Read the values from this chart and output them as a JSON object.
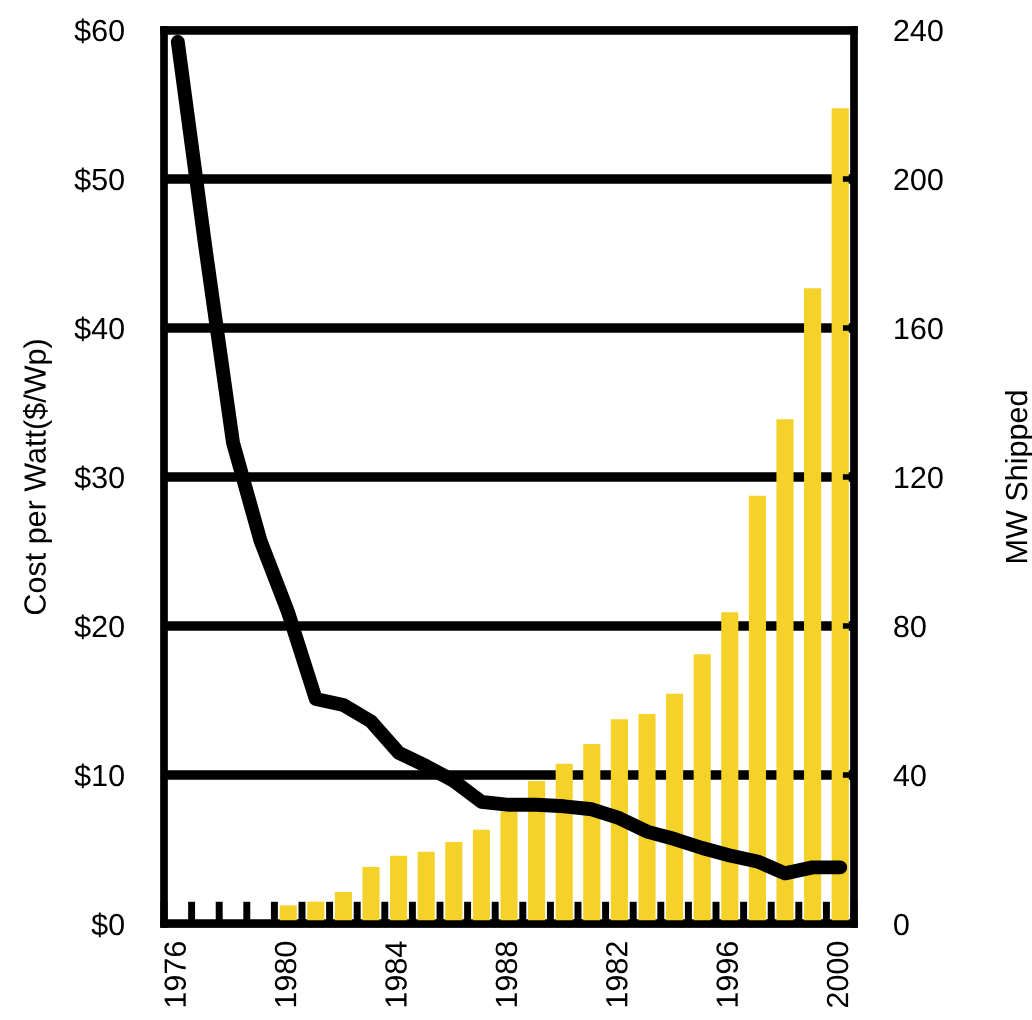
{
  "chart_data": {
    "type": "bar",
    "ylabel": "Cost per Watt($/Wp)",
    "y2label": "MW Shipped",
    "categories": [
      "1976",
      null,
      null,
      null,
      "1980",
      null,
      null,
      null,
      "1984",
      null,
      null,
      null,
      "1988",
      null,
      null,
      null,
      "1982",
      null,
      null,
      null,
      "1996",
      null,
      null,
      null,
      "2000"
    ],
    "series": [
      {
        "axis": "y2",
        "color": "#f5d22a",
        "values": [
          null,
          null,
          null,
          null,
          5.0,
          6.0,
          8.6,
          15.3,
          18.3,
          19.4,
          22,
          25.3,
          30.2,
          38.4,
          43,
          48.3,
          55,
          56.4,
          61.8,
          72.4,
          83.7,
          115,
          135.5,
          170.7,
          219
        ]
      },
      {
        "type": "line",
        "axis": "y",
        "color": "#000000",
        "values": [
          59.2,
          45.4,
          32.3,
          25.7,
          20.9,
          15.1,
          14.7,
          13.6,
          11.5,
          10.6,
          9.6,
          8.2,
          8.0,
          8.0,
          7.9,
          7.7,
          7.1,
          6.2,
          5.7,
          5.1,
          4.6,
          4.2,
          3.4,
          3.8,
          3.8
        ]
      }
    ],
    "ylim": [
      0,
      60
    ],
    "yticks": [
      {
        "value": 0,
        "label": "$0"
      },
      {
        "value": 10,
        "label": "$10"
      },
      {
        "value": 20,
        "label": "$20"
      },
      {
        "value": 30,
        "label": "$30"
      },
      {
        "value": 40,
        "label": "$40"
      },
      {
        "value": 50,
        "label": "$50"
      },
      {
        "value": 60,
        "label": "$60"
      }
    ],
    "y2lim": [
      0,
      240
    ],
    "y2ticks": [
      0,
      40,
      80,
      120,
      160,
      200,
      240
    ],
    "grid": "y",
    "marker": "none",
    "line_style": "solid",
    "legend": false
  }
}
